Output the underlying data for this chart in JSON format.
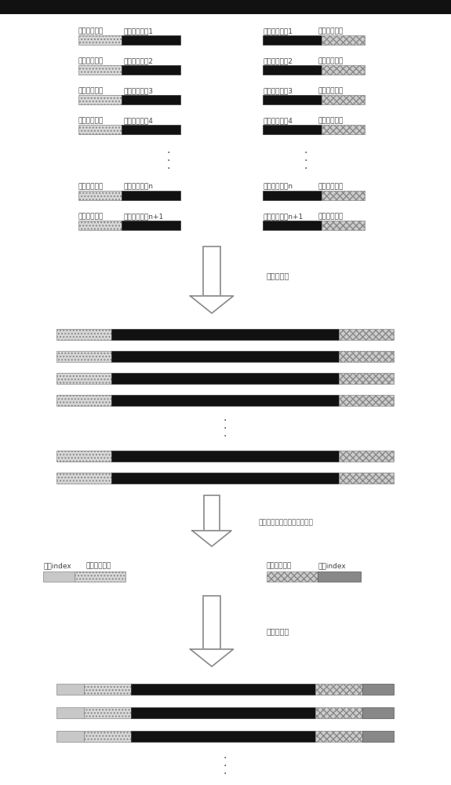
{
  "bg_color": "#ffffff",
  "title_bar_color": "#111111",
  "labels_row1": [
    "正向通用序列",
    "正向特异引物1",
    "反向特异引物1",
    "反向通用序列"
  ],
  "labels_row2": [
    "正向通用序列",
    "正向特异引物2",
    "反向特异引物2",
    "反向通用序列"
  ],
  "labels_row3": [
    "正向通用序列",
    "正向特异引物3",
    "反向特异引物3",
    "反向通用序列"
  ],
  "labels_row4": [
    "正向通用序列",
    "正向特异引物4",
    "反向特异引物4",
    "反向通用序列"
  ],
  "labels_rown": [
    "正向通用序列",
    "正向特异引物n",
    "反向特异引物n",
    "反向通用序列"
  ],
  "labels_rown1": [
    "正向通用序列",
    "正向特异引物n+1",
    "反向特异引物n+1",
    "反向通用序列"
  ],
  "arrow1_label": "第一轮扩增",
  "arrow2_label": "消化体系中残留引物和二聚体",
  "arrow3_label": "第二轮扩增",
  "index_labels_left": [
    "正向index",
    "正向通用序列"
  ],
  "index_labels_right": [
    "反向通用序列",
    "反向index"
  ],
  "color_gray_hatch": "#d8d8d8",
  "color_black": "#111111",
  "color_checker": "#aaaaaa",
  "color_index_gray": "#c0c0c0"
}
